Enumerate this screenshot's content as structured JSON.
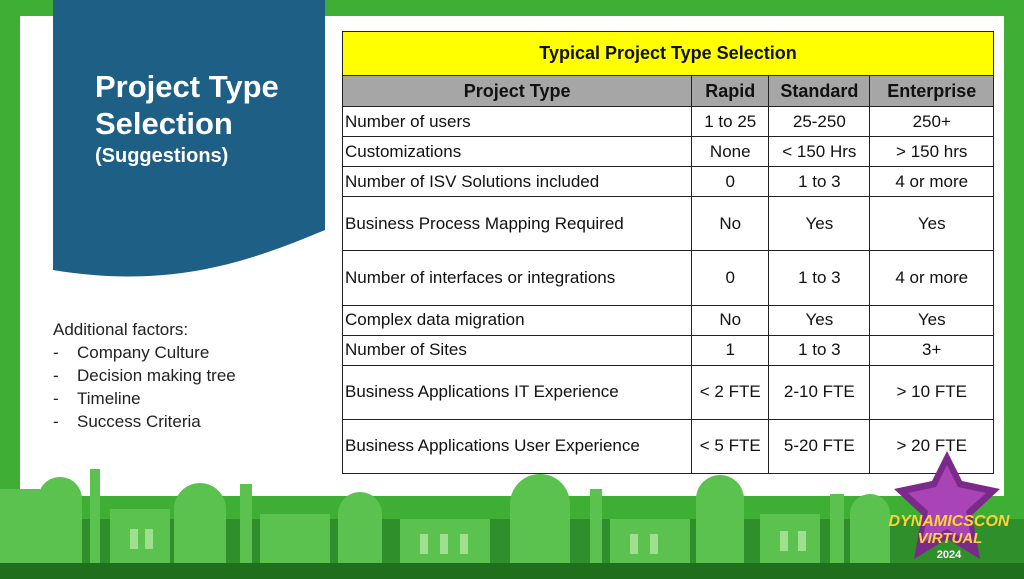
{
  "title": {
    "line1": "Project Type Selection",
    "line2": "(Suggestions)"
  },
  "factors": {
    "heading": "Additional factors:",
    "items": [
      "Company Culture",
      "Decision making tree",
      "Timeline",
      "Success Criteria"
    ]
  },
  "table": {
    "caption": "Typical Project Type Selection",
    "headers": [
      "Project Type",
      "Rapid",
      "Standard",
      "Enterprise"
    ],
    "rows": [
      [
        "Number of users",
        "1 to 25",
        "25-250",
        "250+"
      ],
      [
        "Customizations",
        "None",
        "< 150 Hrs",
        "> 150 hrs"
      ],
      [
        "Number of ISV Solutions included",
        "0",
        "1 to 3",
        "4 or more"
      ],
      [
        "Business Process Mapping Required",
        "No",
        "Yes",
        "Yes"
      ],
      [
        "Number of interfaces or integrations",
        "0",
        "1 to 3",
        "4 or more"
      ],
      [
        "Complex data migration",
        "No",
        "Yes",
        "Yes"
      ],
      [
        "Number of Sites",
        "1",
        "1 to 3",
        "3+"
      ],
      [
        "Business Applications IT Experience",
        "< 2 FTE",
        "2-10 FTE",
        "> 10 FTE"
      ],
      [
        "Business Applications User Experience",
        "< 5 FTE",
        "5-20 FTE",
        "> 20 FTE"
      ]
    ]
  },
  "badge": {
    "line1": "DYNAMICSCON",
    "line2": "VIRTUAL",
    "year": "2024"
  },
  "colors": {
    "frame": "#3fae35",
    "panel": "#1e5f86",
    "caption": "#ffff00",
    "header": "#a6a6a6"
  }
}
